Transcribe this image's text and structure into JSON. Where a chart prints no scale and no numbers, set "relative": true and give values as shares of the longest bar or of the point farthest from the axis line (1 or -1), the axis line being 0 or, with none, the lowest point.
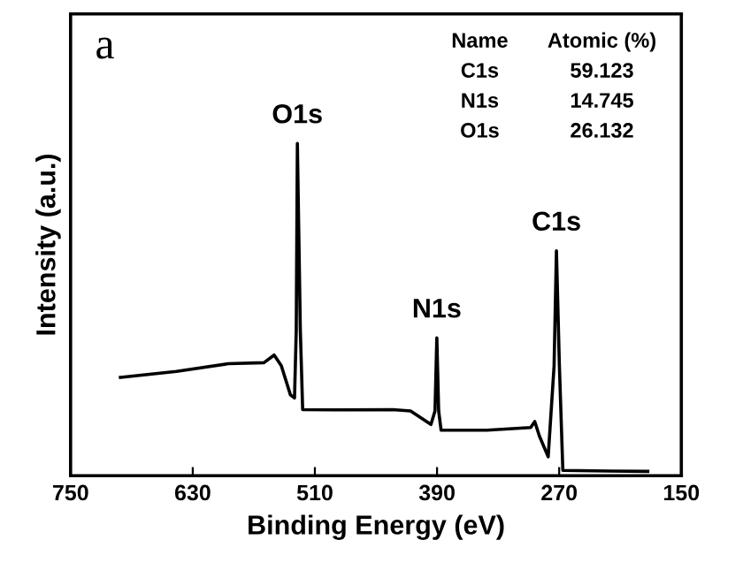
{
  "chart_data": {
    "type": "line",
    "relative": true,
    "xlabel": "Binding Energy (eV)",
    "ylabel": "Intensity (a.u.)",
    "xlim": [
      750,
      150
    ],
    "xticks": [
      750,
      630,
      510,
      390,
      270,
      150
    ],
    "tick_labels": "x",
    "grid": false,
    "marker": "none",
    "line_style": "solid",
    "series": [
      {
        "color": "#000000",
        "x": [
          701,
          646,
          595,
          560,
          550,
          543,
          534,
          530,
          528.3,
          527.2,
          524.3,
          522,
          491,
          433.3,
          416,
          396,
          392,
          390.2,
          388.4,
          386,
          341,
          298,
          294,
          289.4,
          280.8,
          275,
          272.7,
          269.8,
          266.4,
          220.3,
          183
        ],
        "values": [
          0.296,
          0.314,
          0.337,
          0.34,
          0.363,
          0.331,
          0.243,
          0.234,
          0.438,
          1.0,
          0.438,
          0.199,
          0.198,
          0.199,
          0.195,
          0.154,
          0.195,
          0.415,
          0.195,
          0.137,
          0.137,
          0.145,
          0.163,
          0.119,
          0.057,
          0.331,
          0.677,
          0.331,
          0.016,
          0.014,
          0.013
        ]
      }
    ],
    "annotations": [
      {
        "text": "O1s",
        "x": 527.2,
        "y": 1.0
      },
      {
        "text": "N1s",
        "x": 390.2,
        "y": 0.415
      },
      {
        "text": "C1s",
        "x": 272.7,
        "y": 0.677
      },
      "a",
      "Name",
      "Atomic (%)",
      "C1s",
      "59.123",
      "N1s",
      "14.745",
      "O1s",
      "26.132"
    ]
  }
}
